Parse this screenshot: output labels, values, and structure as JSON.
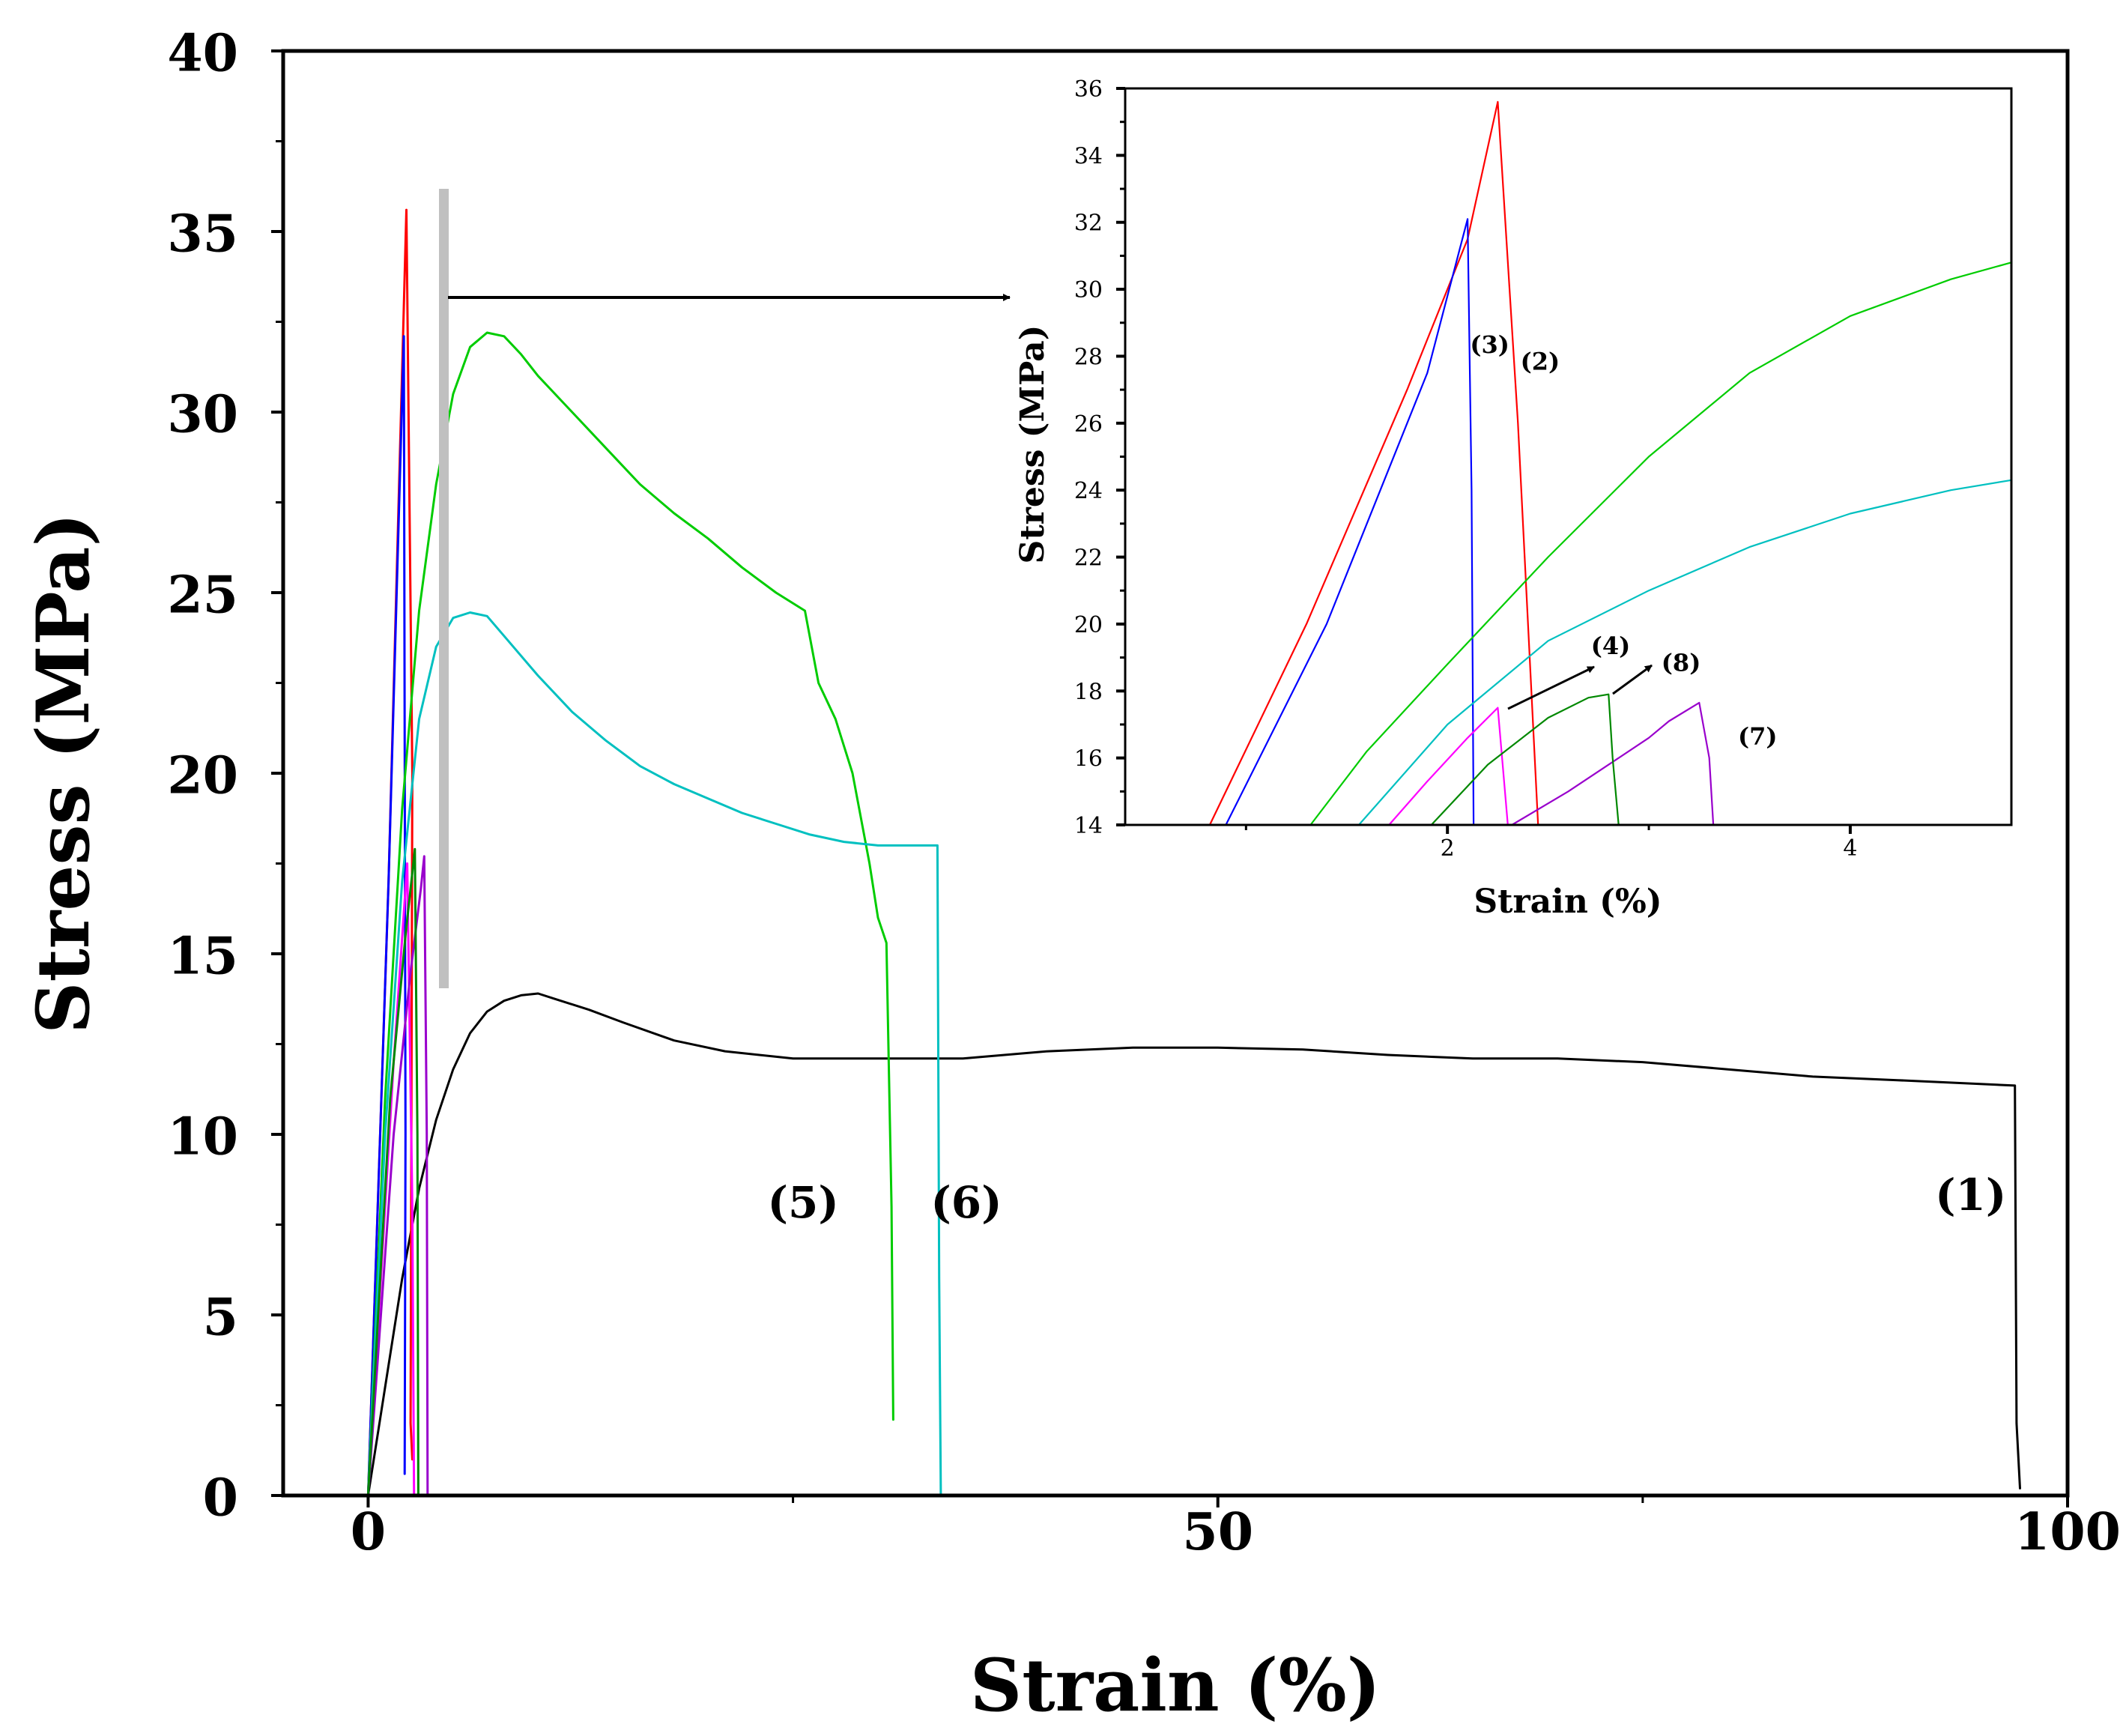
{
  "chart_data": [
    {
      "type": "line",
      "panel": "main",
      "xlabel": "Strain (%)",
      "ylabel": "Stress (MPa)",
      "xlim": [
        -5,
        100
      ],
      "ylim": [
        0,
        40
      ],
      "x_ticks": [
        0,
        50,
        100
      ],
      "y_ticks": [
        0,
        5,
        10,
        15,
        20,
        25,
        30,
        35,
        40
      ],
      "series": [
        {
          "name": "(1)",
          "color": "#000000",
          "points": [
            [
              0,
              0
            ],
            [
              1,
              3
            ],
            [
              2,
              6
            ],
            [
              3,
              8.5
            ],
            [
              4,
              10.4
            ],
            [
              5,
              11.8
            ],
            [
              6,
              12.8
            ],
            [
              7,
              13.4
            ],
            [
              8,
              13.7
            ],
            [
              9,
              13.85
            ],
            [
              10,
              13.9
            ],
            [
              11,
              13.75
            ],
            [
              13,
              13.45
            ],
            [
              15,
              13.1
            ],
            [
              18,
              12.6
            ],
            [
              21,
              12.3
            ],
            [
              25,
              12.1
            ],
            [
              30,
              12.1
            ],
            [
              35,
              12.1
            ],
            [
              40,
              12.3
            ],
            [
              45,
              12.4
            ],
            [
              50,
              12.4
            ],
            [
              55,
              12.35
            ],
            [
              60,
              12.2
            ],
            [
              65,
              12.1
            ],
            [
              70,
              12.1
            ],
            [
              75,
              12.0
            ],
            [
              80,
              11.8
            ],
            [
              85,
              11.6
            ],
            [
              90,
              11.5
            ],
            [
              96.9,
              11.35
            ],
            [
              97.0,
              2.0
            ],
            [
              97.2,
              0.2
            ]
          ]
        },
        {
          "name": "(2)",
          "color": "#ff0000",
          "points": [
            [
              0,
              0
            ],
            [
              1.2,
              17
            ],
            [
              2.25,
              35.6
            ],
            [
              2.6,
              20
            ],
            [
              2.5,
              2
            ],
            [
              2.6,
              1
            ]
          ]
        },
        {
          "name": "(3)",
          "color": "#0000ff",
          "points": [
            [
              0,
              0
            ],
            [
              1.2,
              17
            ],
            [
              2.1,
              32.1
            ],
            [
              2.2,
              10
            ],
            [
              2.15,
              0.6
            ]
          ]
        },
        {
          "name": "(4)",
          "color": "#ff00ff",
          "points": [
            [
              0,
              0
            ],
            [
              1.5,
              12
            ],
            [
              2.3,
              17.5
            ],
            [
              2.6,
              8
            ],
            [
              2.7,
              0
            ]
          ]
        },
        {
          "name": "(5)",
          "color": "#00cc00",
          "points": [
            [
              0,
              0
            ],
            [
              1,
              11
            ],
            [
              2,
              19
            ],
            [
              3,
              24.5
            ],
            [
              4,
              28
            ],
            [
              5,
              30.5
            ],
            [
              6,
              31.8
            ],
            [
              7,
              32.2
            ],
            [
              8,
              32.1
            ],
            [
              9,
              31.6
            ],
            [
              10,
              31.0
            ],
            [
              12,
              30.0
            ],
            [
              14,
              29.0
            ],
            [
              16,
              28.0
            ],
            [
              18,
              27.2
            ],
            [
              20,
              26.5
            ],
            [
              22,
              25.7
            ],
            [
              24,
              25.0
            ],
            [
              25.7,
              24.5
            ],
            [
              26.5,
              22.5
            ],
            [
              27.5,
              21.5
            ],
            [
              28.5,
              20
            ],
            [
              29.5,
              17.5
            ],
            [
              30,
              16
            ],
            [
              30.5,
              15.3
            ],
            [
              30.8,
              8
            ],
            [
              30.9,
              2.1
            ]
          ]
        },
        {
          "name": "(6)",
          "color": "#00c0c0",
          "points": [
            [
              0,
              0
            ],
            [
              1,
              10
            ],
            [
              2,
              17
            ],
            [
              3,
              21.5
            ],
            [
              4,
              23.5
            ],
            [
              5,
              24.3
            ],
            [
              6,
              24.45
            ],
            [
              7,
              24.35
            ],
            [
              8,
              23.8
            ],
            [
              10,
              22.7
            ],
            [
              12,
              21.7
            ],
            [
              14,
              20.9
            ],
            [
              16,
              20.2
            ],
            [
              18,
              19.7
            ],
            [
              20,
              19.3
            ],
            [
              22,
              18.9
            ],
            [
              24,
              18.6
            ],
            [
              26,
              18.3
            ],
            [
              28,
              18.1
            ],
            [
              30,
              18.0
            ],
            [
              33.5,
              18.0
            ],
            [
              33.6,
              6
            ],
            [
              33.7,
              0
            ]
          ]
        },
        {
          "name": "(7)",
          "color": "#9900cc",
          "points": [
            [
              0,
              0
            ],
            [
              1.5,
              10
            ],
            [
              2.5,
              14.5
            ],
            [
              3.1,
              16.8
            ],
            [
              3.3,
              17.7
            ],
            [
              3.45,
              10
            ],
            [
              3.5,
              0
            ]
          ]
        },
        {
          "name": "(8)",
          "color": "#008800",
          "points": [
            [
              0,
              0
            ],
            [
              1.3,
              11
            ],
            [
              2.2,
              15.5
            ],
            [
              2.75,
              17.9
            ],
            [
              2.9,
              10
            ],
            [
              2.95,
              0
            ]
          ]
        }
      ],
      "annotations": [
        {
          "text": "(5)",
          "near": [
            25.6,
            7.7
          ]
        },
        {
          "text": "(6)",
          "near": [
            35.2,
            7.7
          ]
        },
        {
          "text": "(1)",
          "near": [
            94.3,
            7.9
          ]
        }
      ]
    },
    {
      "type": "line",
      "panel": "inset",
      "xlabel": "Strain (%)",
      "ylabel": "Stress (MPa)",
      "xlim": [
        0.4,
        4.8
      ],
      "ylim": [
        14,
        36
      ],
      "x_ticks": [
        2,
        4
      ],
      "y_ticks": [
        14,
        16,
        18,
        20,
        22,
        24,
        26,
        28,
        30,
        32,
        34,
        36
      ],
      "series": [
        {
          "name": "(2)",
          "color": "#ff0000",
          "points": [
            [
              0.82,
              14
            ],
            [
              1.3,
              20
            ],
            [
              1.8,
              27
            ],
            [
              2.1,
              31.5
            ],
            [
              2.25,
              35.6
            ],
            [
              2.35,
              26
            ],
            [
              2.45,
              14
            ]
          ]
        },
        {
          "name": "(3)",
          "color": "#0000ff",
          "points": [
            [
              0.9,
              14
            ],
            [
              1.4,
              20
            ],
            [
              1.9,
              27.5
            ],
            [
              2.1,
              32.1
            ],
            [
              2.12,
              24
            ],
            [
              2.13,
              14
            ]
          ]
        },
        {
          "name": "(4)",
          "color": "#ff00ff",
          "points": [
            [
              1.71,
              14
            ],
            [
              1.9,
              15.3
            ],
            [
              2.1,
              16.6
            ],
            [
              2.25,
              17.5
            ],
            [
              2.3,
              14
            ]
          ]
        },
        {
          "name": "(5)",
          "color": "#00cc00",
          "points": [
            [
              1.32,
              14
            ],
            [
              1.6,
              16.2
            ],
            [
              2,
              18.8
            ],
            [
              2.5,
              22
            ],
            [
              3,
              25
            ],
            [
              3.5,
              27.5
            ],
            [
              4,
              29.2
            ],
            [
              4.5,
              30.3
            ],
            [
              4.8,
              30.8
            ]
          ]
        },
        {
          "name": "(6)",
          "color": "#00c0c0",
          "points": [
            [
              1.56,
              14
            ],
            [
              2,
              17
            ],
            [
              2.5,
              19.5
            ],
            [
              3,
              21
            ],
            [
              3.5,
              22.3
            ],
            [
              4,
              23.3
            ],
            [
              4.5,
              24
            ],
            [
              4.8,
              24.3
            ]
          ]
        },
        {
          "name": "(7)",
          "color": "#9900cc",
          "points": [
            [
              2.32,
              14
            ],
            [
              2.6,
              15
            ],
            [
              2.8,
              15.8
            ],
            [
              3.0,
              16.6
            ],
            [
              3.1,
              17.1
            ],
            [
              3.25,
              17.65
            ],
            [
              3.3,
              16
            ],
            [
              3.32,
              14
            ]
          ]
        },
        {
          "name": "(8)",
          "color": "#008800",
          "points": [
            [
              1.92,
              14
            ],
            [
              2.2,
              15.8
            ],
            [
              2.5,
              17.2
            ],
            [
              2.7,
              17.8
            ],
            [
              2.8,
              17.9
            ],
            [
              2.82,
              16
            ],
            [
              2.85,
              14
            ]
          ]
        }
      ],
      "annotations": [
        {
          "text": "(3)",
          "near": [
            2.21,
            28.1
          ]
        },
        {
          "text": "(2)",
          "near": [
            2.46,
            27.6
          ]
        },
        {
          "text": "(4)",
          "near": [
            2.81,
            19.1
          ]
        },
        {
          "text": "(8)",
          "near": [
            3.16,
            18.6
          ]
        },
        {
          "text": "(7)",
          "near": [
            3.54,
            16.4
          ]
        }
      ]
    }
  ]
}
